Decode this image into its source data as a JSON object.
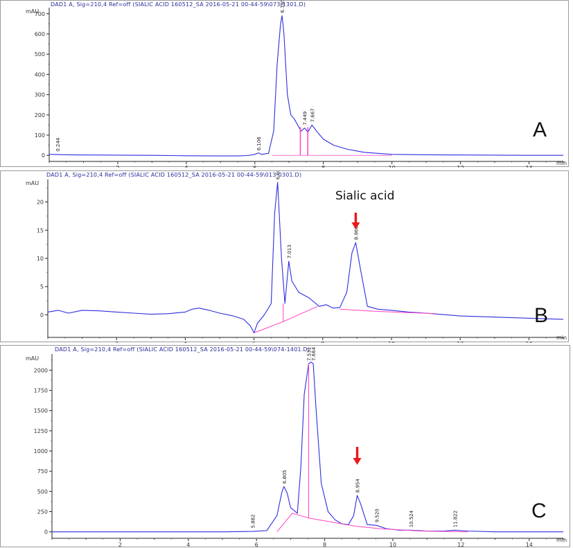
{
  "chart_data": [
    {
      "type": "line",
      "panel_label": "A",
      "title": "DAD1 A, Sig=210,4 Ref=off (SIALIC ACID 160512_SA 2016-05-21 00-44-59\\073-1301.D)",
      "ylabel": "mAU",
      "xlabel": "min",
      "xlim": [
        0,
        15
      ],
      "ylim": [
        -30,
        730
      ],
      "xticks": [
        2,
        4,
        6,
        8,
        10,
        12,
        14
      ],
      "yticks": [
        0,
        100,
        200,
        300,
        400,
        500,
        600,
        700
      ],
      "peak_labels": [
        {
          "x": 0.244,
          "label": "0.244",
          "y": 5
        },
        {
          "x": 6.106,
          "label": "6.106",
          "y": 10
        },
        {
          "x": 6.795,
          "label": "6.795",
          "y": 690
        },
        {
          "x": 7.449,
          "label": "7.449",
          "y": 135
        },
        {
          "x": 7.667,
          "label": "7.667",
          "y": 150
        }
      ],
      "series": [
        {
          "x": [
            0,
            0.5,
            1,
            2,
            3,
            4,
            5,
            5.5,
            5.8,
            6.0,
            6.106,
            6.2,
            6.4,
            6.55,
            6.65,
            6.75,
            6.795,
            6.85,
            6.95,
            7.05,
            7.15,
            7.25,
            7.35,
            7.449,
            7.55,
            7.667,
            7.8,
            8.0,
            8.3,
            8.7,
            9.2,
            10,
            11,
            12,
            13,
            14,
            15
          ],
          "y": [
            5,
            3,
            2,
            1,
            0,
            -2,
            -3,
            -3,
            -1,
            5,
            12,
            5,
            10,
            120,
            450,
            650,
            690,
            600,
            300,
            200,
            180,
            150,
            120,
            135,
            115,
            150,
            120,
            80,
            50,
            30,
            15,
            5,
            3,
            2,
            1,
            0,
            0
          ]
        }
      ],
      "markers": [
        {
          "x": 7.4,
          "y": 135
        },
        {
          "x": 7.55,
          "y": 150
        }
      ]
    },
    {
      "type": "line",
      "panel_label": "B",
      "title": "DAD1 A, Sig=210,4 Ref=off (SIALIC ACID 160512_SA 2016-05-21 00-44-59\\013-0301.D)",
      "ylabel": "mAU",
      "xlabel": "min",
      "xlim": [
        0,
        15
      ],
      "ylim": [
        -4,
        24
      ],
      "xticks": [
        2,
        4,
        6,
        8,
        10,
        12,
        14
      ],
      "yticks": [
        0,
        5,
        10,
        15,
        20
      ],
      "annotation": "Sialic acid",
      "peak_labels": [
        {
          "x": 6.688,
          "label": "6.688",
          "y": 23.5
        },
        {
          "x": 7.013,
          "label": "7.013",
          "y": 9.5
        },
        {
          "x": 8.96,
          "label": "8.960",
          "y": 12.8
        }
      ],
      "series": [
        {
          "x": [
            0,
            0.3,
            0.6,
            1,
            1.5,
            2,
            2.5,
            3,
            3.5,
            4,
            4.2,
            4.4,
            4.7,
            5,
            5.4,
            5.7,
            5.9,
            6.0,
            6.1,
            6.3,
            6.5,
            6.6,
            6.688,
            6.8,
            6.9,
            7.013,
            7.1,
            7.3,
            7.6,
            7.9,
            8.1,
            8.3,
            8.5,
            8.7,
            8.85,
            8.96,
            9.1,
            9.3,
            9.6,
            10,
            10.5,
            11,
            12,
            13,
            14,
            15
          ],
          "y": [
            0.5,
            0.8,
            0.3,
            0.8,
            0.7,
            0.5,
            0.3,
            0.1,
            0.2,
            0.5,
            1.0,
            1.2,
            0.8,
            0.3,
            -0.2,
            -0.8,
            -2.0,
            -3.2,
            -1.5,
            0,
            2,
            18,
            23.5,
            10,
            2,
            9.5,
            6,
            4,
            3,
            1.5,
            1.8,
            1.2,
            1.3,
            4,
            11,
            12.8,
            8,
            1.5,
            1.0,
            0.8,
            0.5,
            0.3,
            -0.2,
            -0.4,
            -0.6,
            -0.8
          ]
        },
        {
          "name": "baseline-1",
          "x": [
            6.0,
            6.85,
            7.85
          ],
          "y": [
            -3.2,
            -1.2,
            1.5
          ]
        },
        {
          "name": "baseline-2",
          "x": [
            8.5,
            9.6,
            11.3
          ],
          "y": [
            1.0,
            0.6,
            0.2
          ]
        }
      ]
    },
    {
      "type": "line",
      "panel_label": "C",
      "title": "DAD1 A, Sig=210,4 Ref=off (SIALIC ACID 160512_SA 2016-05-21 00-44-59\\074-1401.D)",
      "ylabel": "mAU",
      "xlabel": "min",
      "xlim": [
        0,
        15
      ],
      "ylim": [
        -80,
        2200
      ],
      "xticks": [
        2,
        4,
        6,
        8,
        10,
        12,
        14
      ],
      "yticks": [
        0,
        250,
        500,
        750,
        1000,
        1250,
        1500,
        1750,
        2000
      ],
      "peak_labels": [
        {
          "x": 5.882,
          "label": "5.882",
          "y": 10
        },
        {
          "x": 6.805,
          "label": "6.805",
          "y": 560
        },
        {
          "x": 7.531,
          "label": "7.531",
          "y": 2080
        },
        {
          "x": 7.664,
          "label": "7.664",
          "y": 2080
        },
        {
          "x": 8.954,
          "label": "8.954",
          "y": 450
        },
        {
          "x": 9.52,
          "label": "9.520",
          "y": 80
        },
        {
          "x": 10.524,
          "label": "10.524",
          "y": 20
        },
        {
          "x": 11.822,
          "label": "11.822",
          "y": 20
        }
      ],
      "series": [
        {
          "x": [
            0,
            1,
            2,
            3,
            4,
            5,
            5.882,
            6.3,
            6.6,
            6.75,
            6.805,
            6.9,
            7.0,
            7.2,
            7.3,
            7.4,
            7.531,
            7.6,
            7.664,
            7.75,
            7.9,
            8.1,
            8.3,
            8.5,
            8.7,
            8.85,
            8.954,
            9.05,
            9.25,
            9.52,
            9.8,
            10.2,
            10.524,
            11,
            11.5,
            11.822,
            12.2,
            13,
            14,
            15
          ],
          "y": [
            0,
            0,
            0,
            0,
            0,
            0,
            5,
            15,
            200,
            500,
            560,
            480,
            300,
            230,
            800,
            1700,
            2080,
            2100,
            2080,
            1500,
            600,
            250,
            150,
            100,
            90,
            200,
            450,
            350,
            90,
            80,
            40,
            20,
            20,
            10,
            10,
            20,
            10,
            0,
            0,
            0
          ]
        },
        {
          "name": "baseline",
          "x": [
            6.6,
            7.05,
            7.531,
            8.9,
            9.6,
            10.8,
            12.2
          ],
          "y": [
            0,
            230,
            170,
            70,
            40,
            10,
            0
          ]
        }
      ]
    }
  ]
}
